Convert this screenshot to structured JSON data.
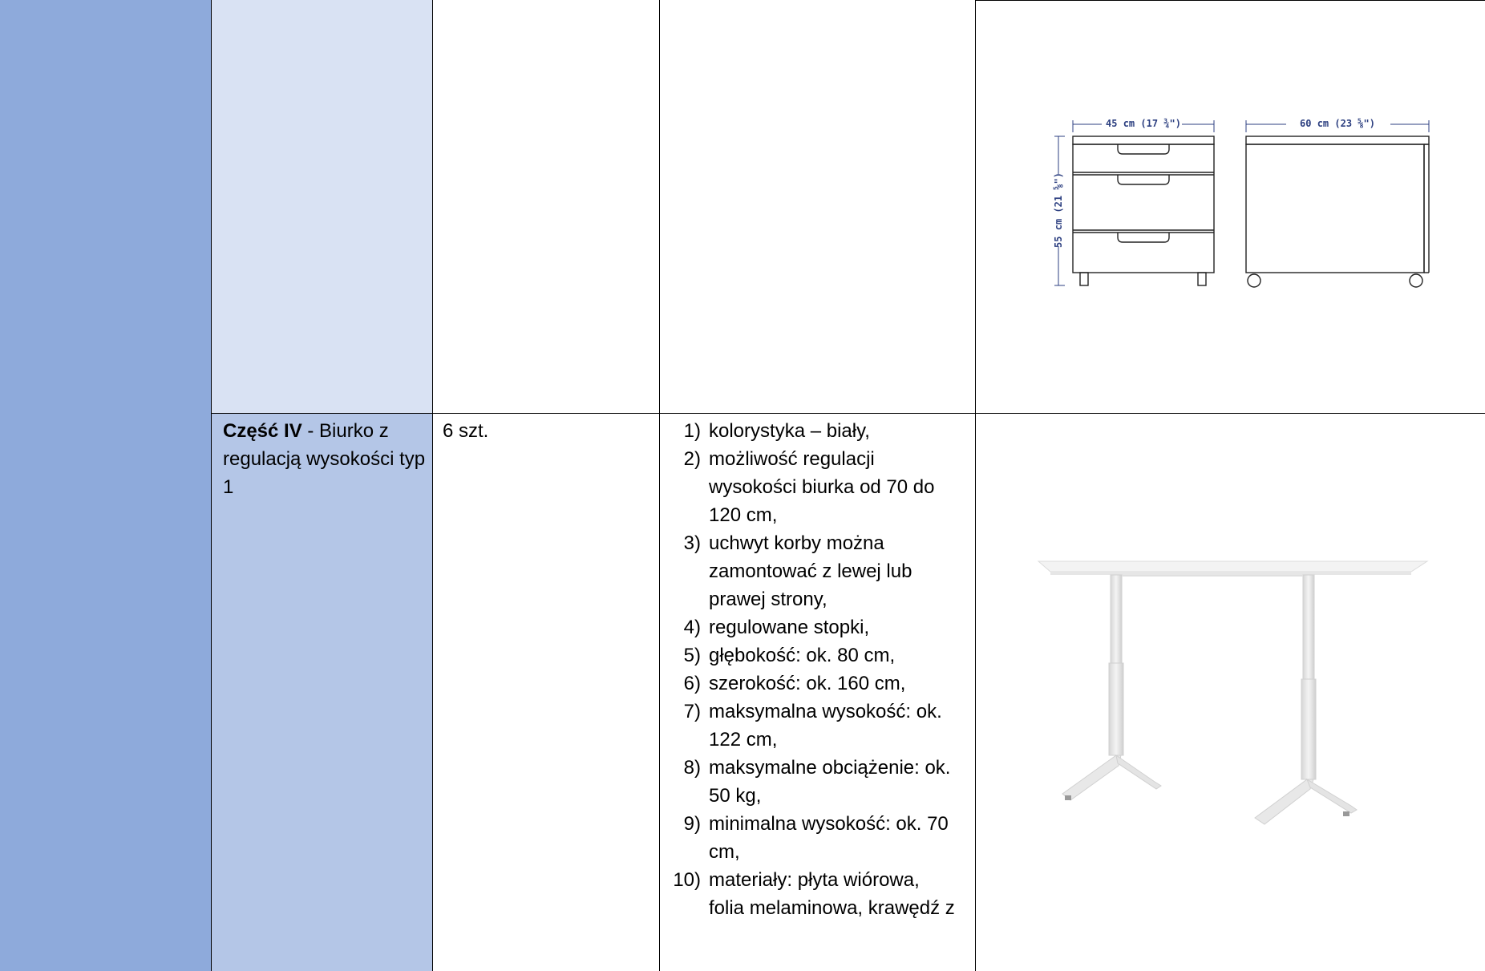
{
  "part": {
    "label_bold": "Część IV",
    "label_rest": " - Biurko z regulacją wysokości typ 1"
  },
  "quantity": "6 szt.",
  "specs": [
    {
      "num": "1)",
      "text": "kolorystyka – biały,"
    },
    {
      "num": "2)",
      "text": "możliwość regulacji wysokości biurka od 70 do 120 cm,"
    },
    {
      "num": "3)",
      "text": "uchwyt korby można zamontować z lewej lub prawej strony,"
    },
    {
      "num": "4)",
      "text": "regulowane stopki,"
    },
    {
      "num": "5)",
      "text": "głębokość: ok. 80 cm,"
    },
    {
      "num": "6)",
      "text": "szerokość: ok. 160 cm,"
    },
    {
      "num": "7)",
      "text": "maksymalna wysokość: ok. 122 cm,"
    },
    {
      "num": "8)",
      "text": "maksymalne obciążenie: ok. 50 kg,"
    },
    {
      "num": "9)",
      "text": "minimalna wysokość: ok. 70 cm,"
    },
    {
      "num": "10)",
      "text": "materiały: płyta wiórowa, folia melaminowa, krawędź z"
    }
  ],
  "drawing": {
    "width_front": "45 cm (17 ¾\")",
    "width_side": "60 cm (23 ⅝\")",
    "height": "55 cm (21 ⅝\")"
  }
}
